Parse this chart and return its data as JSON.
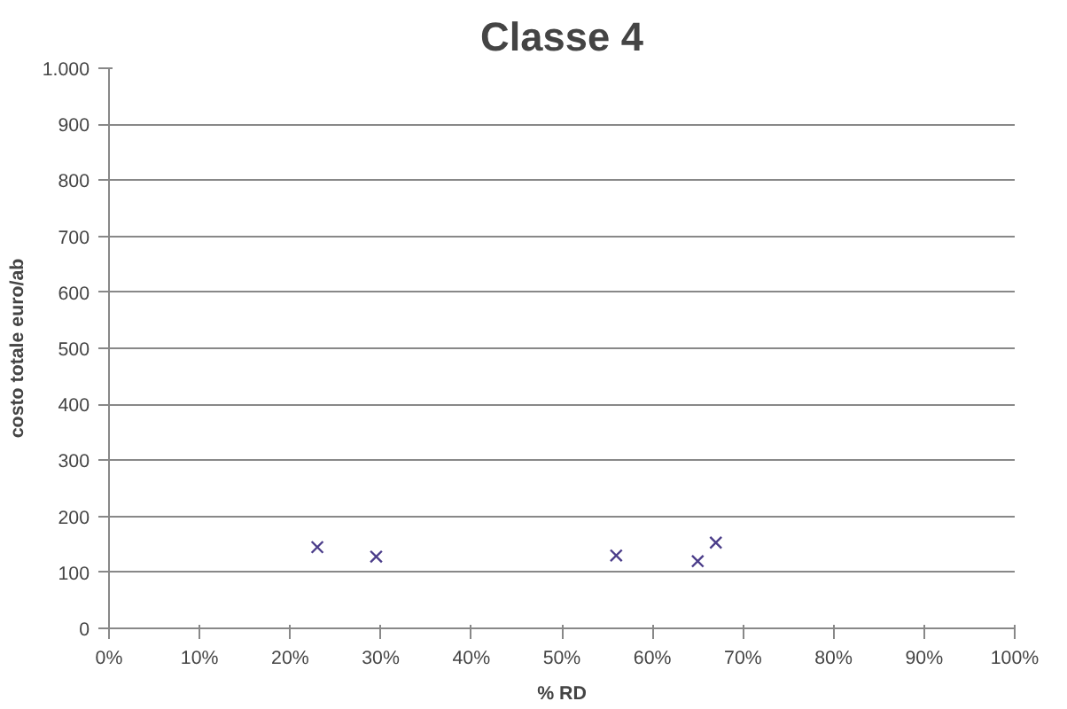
{
  "chart_data": {
    "type": "scatter",
    "title": "Classe 4",
    "xlabel": "% RD",
    "ylabel": "costo totale euro/ab",
    "x": [
      0.23,
      0.295,
      0.56,
      0.65,
      0.67
    ],
    "series": [
      {
        "color": "#4b3d8a",
        "values": [
          145,
          128,
          130,
          120,
          153
        ]
      }
    ],
    "marker": "cross",
    "grid": "y",
    "xlim": [
      0,
      1
    ],
    "xticks": [
      {
        "value": 0,
        "label": "0%"
      },
      {
        "value": 0.1,
        "label": "10%"
      },
      {
        "value": 0.2,
        "label": "20%"
      },
      {
        "value": 0.3,
        "label": "30%"
      },
      {
        "value": 0.4,
        "label": "40%"
      },
      {
        "value": 0.5,
        "label": "50%"
      },
      {
        "value": 0.6,
        "label": "60%"
      },
      {
        "value": 0.7,
        "label": "70%"
      },
      {
        "value": 0.8,
        "label": "80%"
      },
      {
        "value": 0.9,
        "label": "90%"
      },
      {
        "value": 1,
        "label": "100%"
      }
    ],
    "ylim": [
      0,
      1000
    ],
    "yticks": [
      0,
      100,
      200,
      300,
      400,
      500,
      600,
      700,
      800,
      900,
      {
        "value": 1000,
        "label": "1.000"
      }
    ]
  }
}
